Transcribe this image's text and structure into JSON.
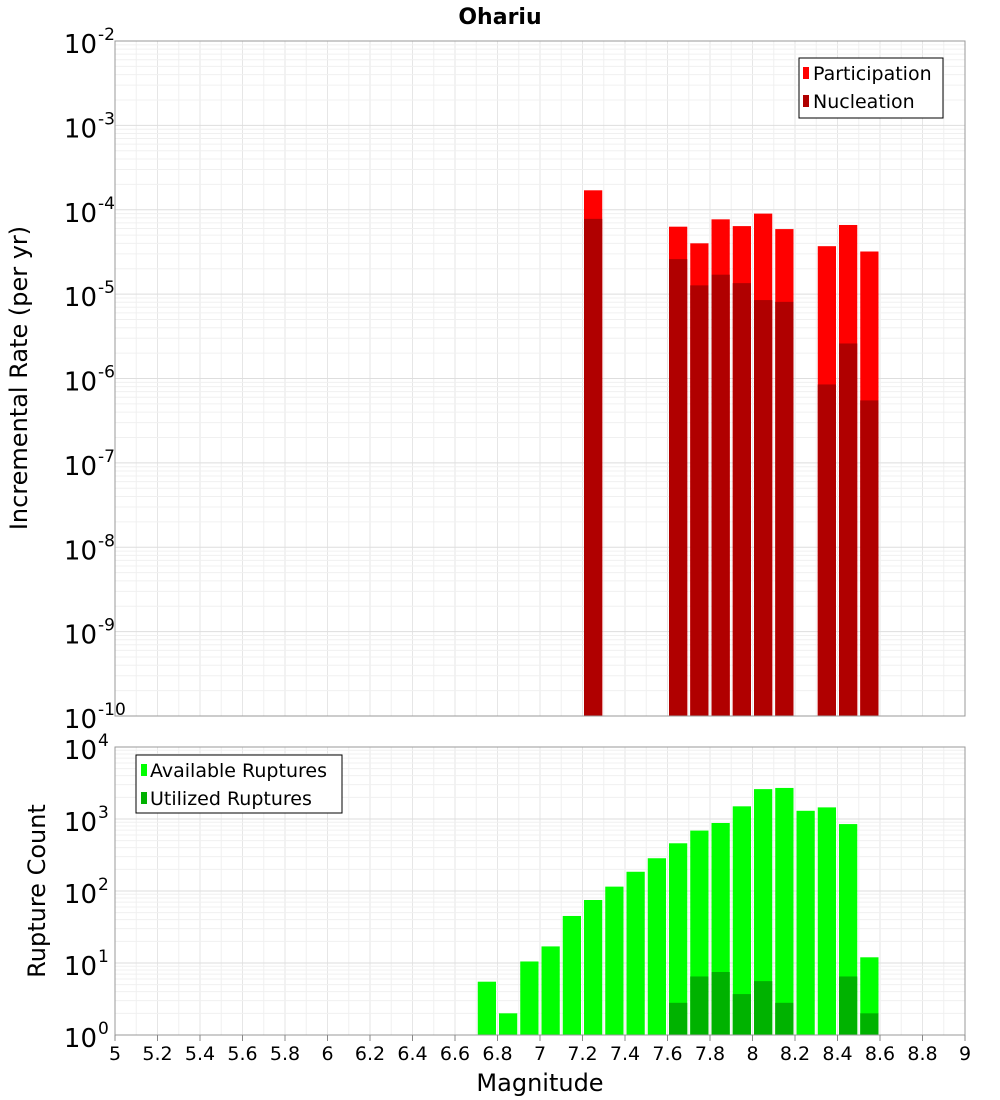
{
  "chart_data": [
    {
      "type": "bar",
      "title": "Ohariu",
      "xlabel": "",
      "ylabel": "Incremental Rate (per yr)",
      "xlim": [
        5,
        9
      ],
      "ylim": [
        1e-10,
        0.01
      ],
      "yscale": "log",
      "grid": true,
      "legend_position": "top-right",
      "x": [
        7.25,
        7.65,
        7.75,
        7.85,
        7.95,
        8.05,
        8.15,
        8.35,
        8.45,
        8.55
      ],
      "series": [
        {
          "name": "Participation",
          "color": "#ff0000",
          "values": [
            0.00017,
            6.3e-05,
            4e-05,
            7.7e-05,
            6.4e-05,
            9e-05,
            5.9e-05,
            3.7e-05,
            6.6e-05,
            3.2e-05
          ]
        },
        {
          "name": "Nucleation",
          "color": "#b00000",
          "values": [
            7.8e-05,
            2.6e-05,
            1.27e-05,
            1.7e-05,
            1.35e-05,
            8.5e-06,
            8.1e-06,
            8.5e-07,
            2.6e-06,
            5.5e-07
          ]
        }
      ]
    },
    {
      "type": "bar",
      "title": "",
      "xlabel": "Magnitude",
      "ylabel": "Rupture Count",
      "xlim": [
        5,
        9
      ],
      "ylim": [
        1,
        10000.0
      ],
      "yscale": "log",
      "grid": true,
      "legend_position": "top-left",
      "x": [
        6.75,
        6.85,
        6.95,
        7.05,
        7.15,
        7.25,
        7.35,
        7.45,
        7.55,
        7.65,
        7.75,
        7.85,
        7.95,
        8.05,
        8.15,
        8.25,
        8.35,
        8.45,
        8.55
      ],
      "series": [
        {
          "name": "Available Ruptures",
          "color": "#00ff00",
          "values": [
            5.5,
            2,
            10.5,
            17,
            45,
            75,
            115,
            185,
            285,
            460,
            690,
            880,
            1500,
            2600,
            2700,
            1300,
            1450,
            850,
            12
          ]
        },
        {
          "name": "Utilized Ruptures",
          "color": "#00b200",
          "values": [
            0,
            0,
            0,
            0,
            0,
            1,
            0,
            0,
            0,
            2.8,
            6.5,
            7.5,
            3.7,
            5.6,
            2.8,
            0,
            1,
            6.5,
            2
          ]
        }
      ]
    }
  ],
  "x_ticks": [
    "5",
    "5.2",
    "5.4",
    "5.6",
    "5.8",
    "6",
    "6.2",
    "6.4",
    "6.6",
    "6.8",
    "7",
    "7.2",
    "7.4",
    "7.6",
    "7.8",
    "8",
    "8.2",
    "8.4",
    "8.6",
    "8.8",
    "9"
  ],
  "top_y_ticks": [
    {
      "base": "10",
      "exp": "-2"
    },
    {
      "base": "10",
      "exp": "-3"
    },
    {
      "base": "10",
      "exp": "-4"
    },
    {
      "base": "10",
      "exp": "-5"
    },
    {
      "base": "10",
      "exp": "-6"
    },
    {
      "base": "10",
      "exp": "-7"
    },
    {
      "base": "10",
      "exp": "-8"
    },
    {
      "base": "10",
      "exp": "-9"
    },
    {
      "base": "10",
      "exp": "-10"
    }
  ],
  "bottom_y_ticks": [
    {
      "base": "10",
      "exp": "4"
    },
    {
      "base": "10",
      "exp": "3"
    },
    {
      "base": "10",
      "exp": "2"
    },
    {
      "base": "10",
      "exp": "1"
    },
    {
      "base": "10",
      "exp": "0"
    }
  ]
}
